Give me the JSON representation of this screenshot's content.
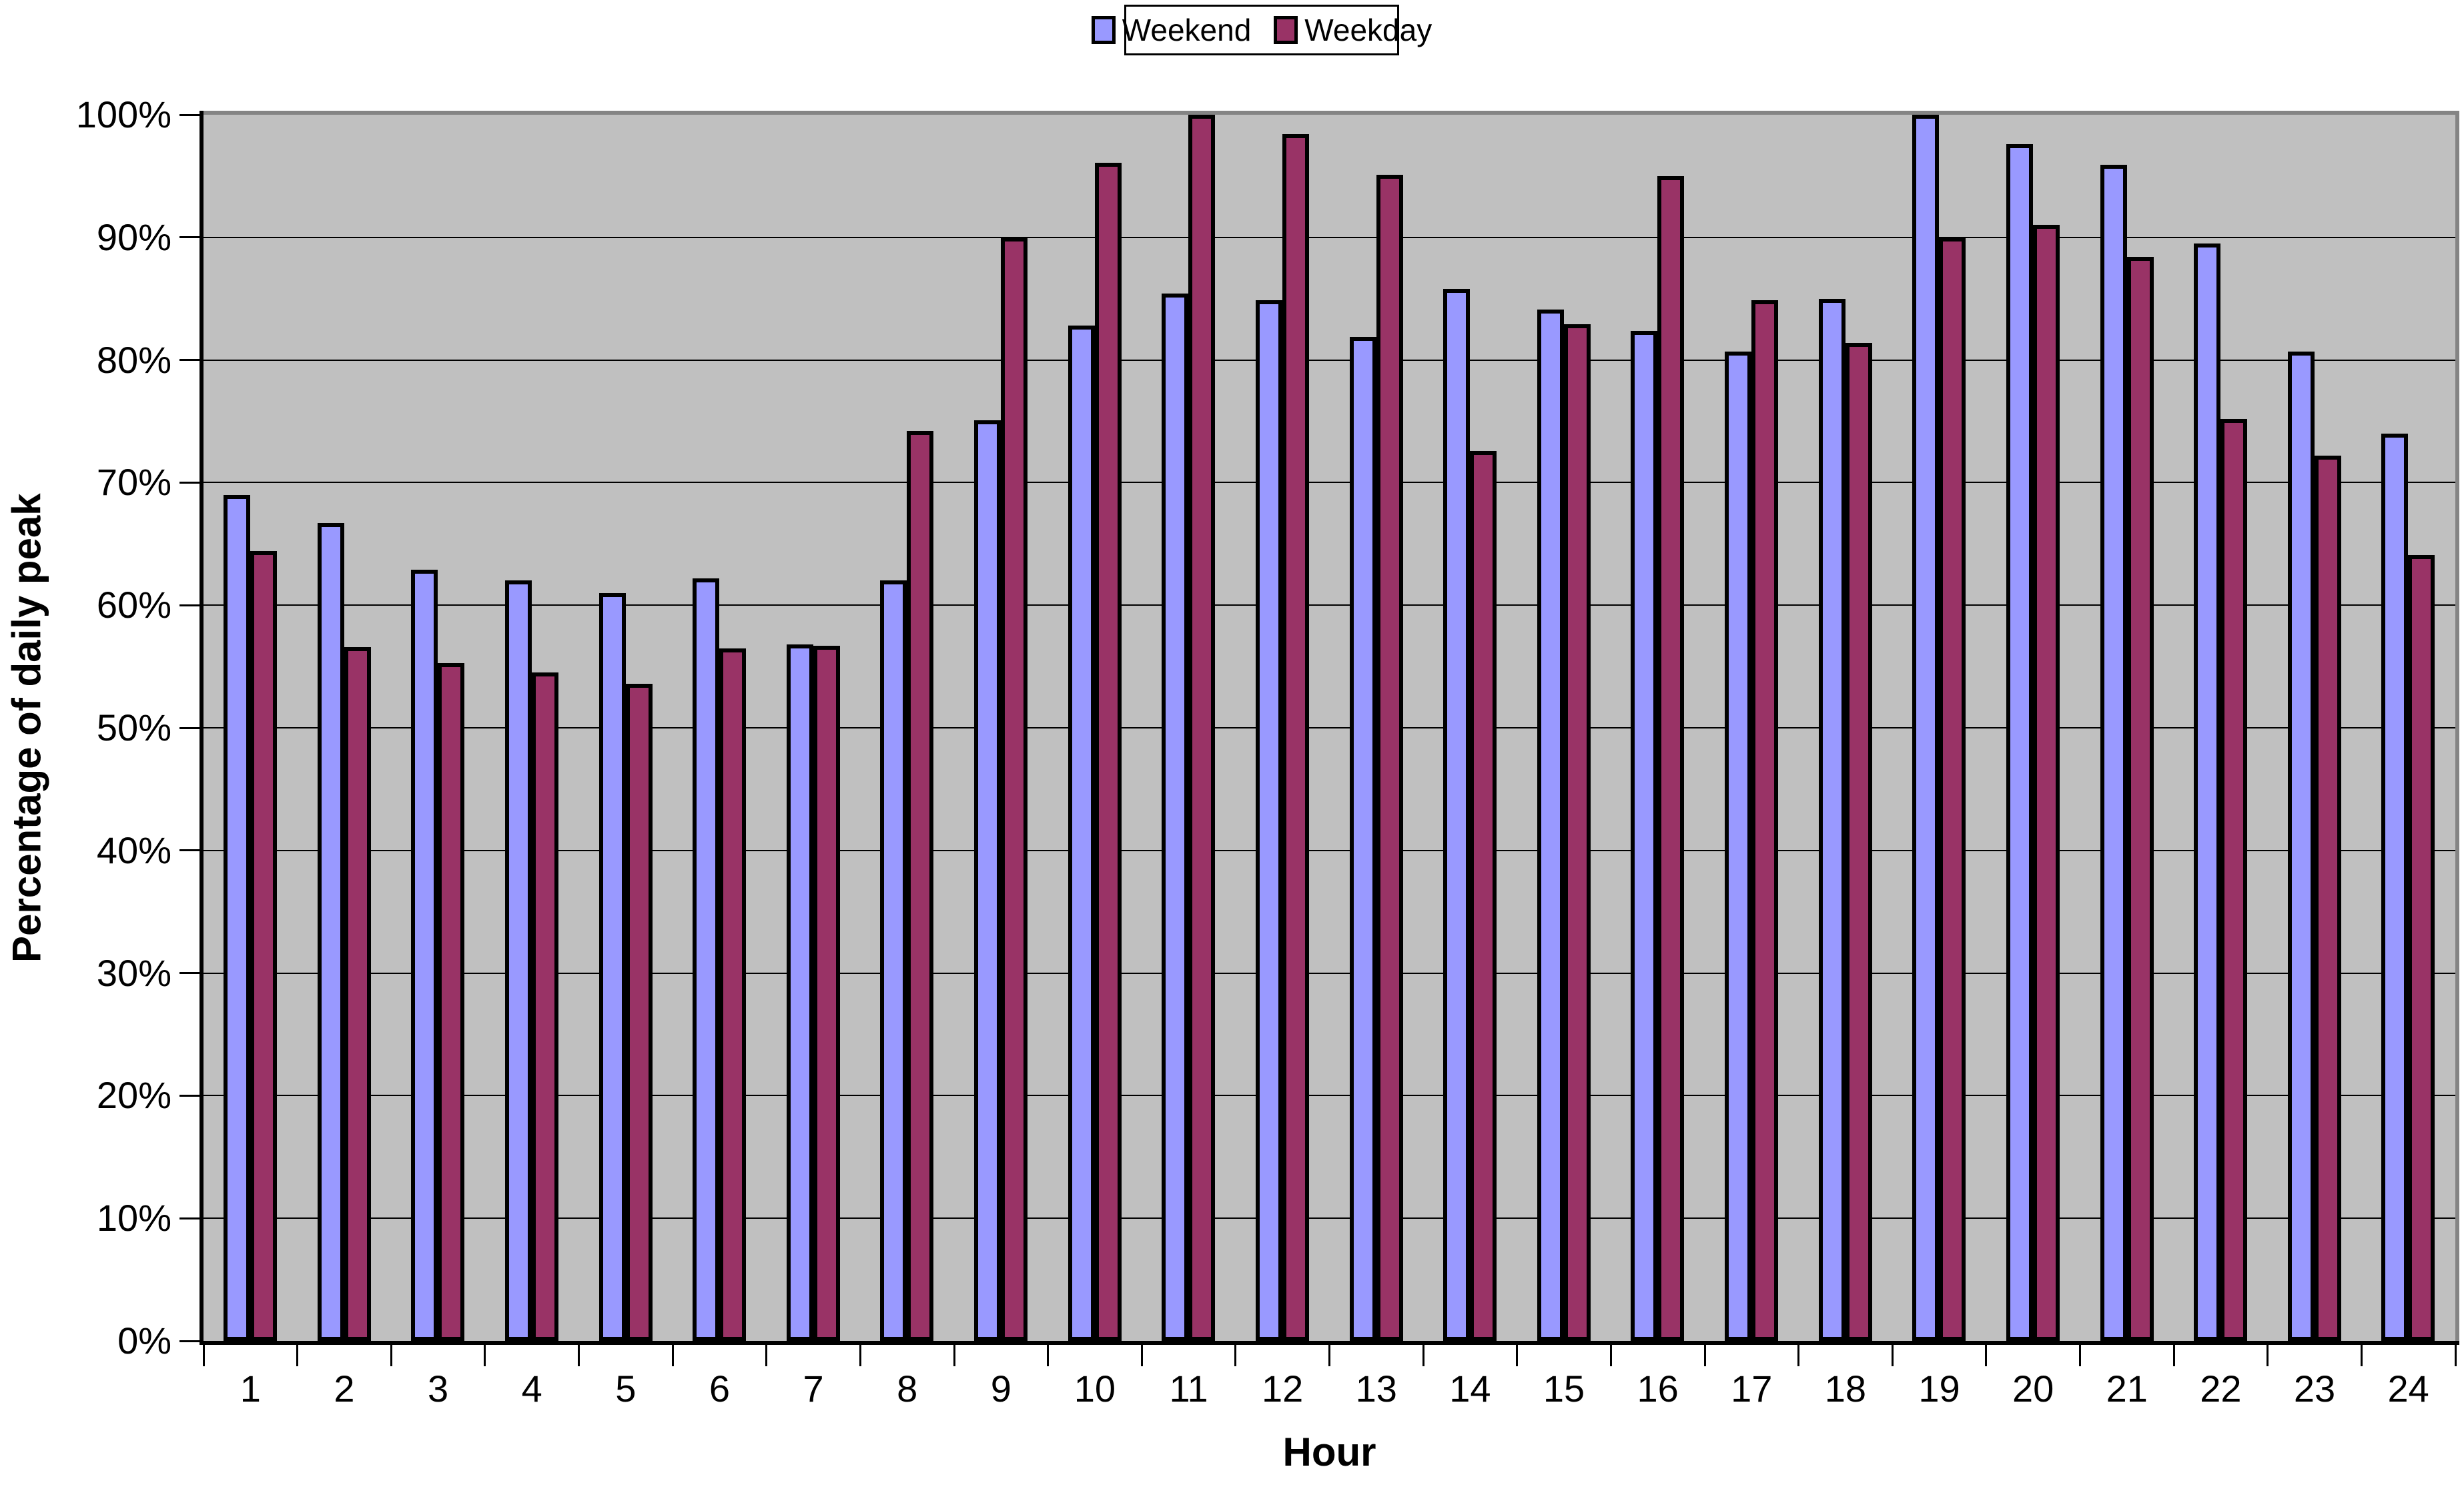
{
  "chart_data": {
    "type": "bar",
    "title": "",
    "categories": [
      "1",
      "2",
      "3",
      "4",
      "5",
      "6",
      "7",
      "8",
      "9",
      "10",
      "11",
      "12",
      "13",
      "14",
      "15",
      "16",
      "17",
      "18",
      "19",
      "20",
      "21",
      "22",
      "23",
      "24"
    ],
    "series": [
      {
        "name": "Weekend",
        "color": "#9999FF",
        "values": [
          69.0,
          66.7,
          62.9,
          62.0,
          61.0,
          62.2,
          56.8,
          62.0,
          75.1,
          82.8,
          85.4,
          84.9,
          81.9,
          85.8,
          84.1,
          82.4,
          80.7,
          85.0,
          100.0,
          97.6,
          95.9,
          89.5,
          80.7,
          74.0
        ]
      },
      {
        "name": "Weekday",
        "color": "#993366",
        "values": [
          64.4,
          56.6,
          55.3,
          54.5,
          53.6,
          56.5,
          56.7,
          74.2,
          90.0,
          96.1,
          100.0,
          98.4,
          95.1,
          72.6,
          82.9,
          95.0,
          84.9,
          81.4,
          90.0,
          91.0,
          88.4,
          75.2,
          72.2,
          64.1
        ]
      }
    ],
    "xlabel": "Hour",
    "ylabel": "Percentage of daily peak",
    "ylim": [
      0,
      100
    ],
    "ytick_step": 10,
    "ytick_labels": [
      "0%",
      "10%",
      "20%",
      "30%",
      "40%",
      "50%",
      "60%",
      "70%",
      "80%",
      "90%",
      "100%"
    ],
    "grid": "horizontal major gridlines every 10%",
    "legend_position": "top-center",
    "plot_background": "#C0C0C0",
    "chart_background": "#FFFFFF",
    "bar_border_color": "#000000"
  }
}
